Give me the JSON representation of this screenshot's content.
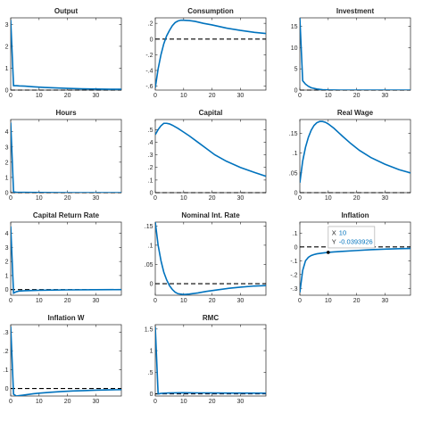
{
  "figure": {
    "line_color": "#0072BD",
    "zero_line_color": "#000000",
    "axis_color": "#262626"
  },
  "chart_data": [
    {
      "title": "Output",
      "type": "line",
      "xlim": [
        0,
        39
      ],
      "ylim": [
        0,
        3.3
      ],
      "xticks": [
        0,
        10,
        20,
        30
      ],
      "yticks": [
        0,
        1,
        2,
        3
      ],
      "zero_line": true,
      "x": [
        0,
        1,
        2,
        3,
        5,
        8,
        12,
        16,
        20,
        25,
        30,
        35,
        39
      ],
      "series": [
        {
          "values": [
            3.2,
            0.2,
            0.2,
            0.19,
            0.18,
            0.15,
            0.12,
            0.1,
            0.08,
            0.06,
            0.05,
            0.04,
            0.04
          ]
        }
      ]
    },
    {
      "title": "Consumption",
      "type": "line",
      "xlim": [
        0,
        39
      ],
      "ylim": [
        -0.65,
        0.27
      ],
      "xticks": [
        0,
        10,
        20,
        30
      ],
      "yticks": [
        -0.6,
        -0.4,
        -0.2,
        0,
        0.2
      ],
      "zero_line": true,
      "x": [
        0,
        1,
        2,
        3,
        4,
        5,
        6,
        7,
        8,
        9,
        10,
        12,
        14,
        17,
        20,
        25,
        30,
        35,
        39
      ],
      "series": [
        {
          "values": [
            -0.62,
            -0.38,
            -0.2,
            -0.06,
            0.04,
            0.11,
            0.17,
            0.21,
            0.23,
            0.24,
            0.24,
            0.235,
            0.225,
            0.2,
            0.18,
            0.14,
            0.11,
            0.085,
            0.07
          ]
        }
      ]
    },
    {
      "title": "Investment",
      "type": "line",
      "xlim": [
        0,
        39
      ],
      "ylim": [
        0,
        17
      ],
      "xticks": [
        0,
        10,
        20,
        30
      ],
      "yticks": [
        0,
        5,
        10,
        15
      ],
      "zero_line": true,
      "x": [
        0,
        1,
        2,
        3,
        4,
        6,
        8,
        10,
        14,
        20,
        30,
        39
      ],
      "series": [
        {
          "values": [
            17,
            2.2,
            1.4,
            0.9,
            0.55,
            0.25,
            0.1,
            0.04,
            0.0,
            0.0,
            0.0,
            0.0
          ]
        }
      ]
    },
    {
      "title": "Hours",
      "type": "line",
      "xlim": [
        0,
        39
      ],
      "ylim": [
        0,
        4.8
      ],
      "xticks": [
        0,
        10,
        20,
        30
      ],
      "yticks": [
        0,
        1,
        2,
        3,
        4
      ],
      "zero_line": true,
      "x": [
        0,
        1,
        2,
        5,
        10,
        20,
        30,
        39
      ],
      "series": [
        {
          "values": [
            4.6,
            0.05,
            0.03,
            0.02,
            0.01,
            0.0,
            0.0,
            0.0
          ]
        }
      ]
    },
    {
      "title": "Capital",
      "type": "line",
      "xlim": [
        0,
        39
      ],
      "ylim": [
        0,
        0.58
      ],
      "xticks": [
        0,
        10,
        20,
        30
      ],
      "yticks": [
        0,
        0.1,
        0.2,
        0.3,
        0.4,
        0.5
      ],
      "zero_line": true,
      "x": [
        0,
        1,
        2,
        3,
        4,
        5,
        6,
        8,
        10,
        12,
        15,
        18,
        21,
        25,
        30,
        35,
        39
      ],
      "series": [
        {
          "values": [
            0.46,
            0.5,
            0.53,
            0.55,
            0.55,
            0.545,
            0.535,
            0.51,
            0.48,
            0.45,
            0.4,
            0.35,
            0.3,
            0.25,
            0.2,
            0.16,
            0.13
          ]
        }
      ]
    },
    {
      "title": "Real Wage",
      "type": "line",
      "xlim": [
        0,
        39
      ],
      "ylim": [
        0,
        0.185
      ],
      "xticks": [
        0,
        10,
        20,
        30
      ],
      "yticks": [
        0,
        0.05,
        0.1,
        0.15
      ],
      "zero_line": true,
      "x": [
        0,
        1,
        2,
        3,
        4,
        5,
        6,
        7,
        8,
        9,
        10,
        12,
        15,
        18,
        21,
        25,
        30,
        35,
        39
      ],
      "series": [
        {
          "values": [
            0.025,
            0.08,
            0.115,
            0.14,
            0.158,
            0.17,
            0.177,
            0.18,
            0.18,
            0.178,
            0.174,
            0.163,
            0.143,
            0.124,
            0.107,
            0.089,
            0.072,
            0.058,
            0.05
          ]
        }
      ]
    },
    {
      "title": "Capital Return Rate",
      "type": "line",
      "xlim": [
        0,
        39
      ],
      "ylim": [
        -0.4,
        4.8
      ],
      "xticks": [
        0,
        10,
        20,
        30
      ],
      "yticks": [
        0,
        1,
        2,
        3,
        4
      ],
      "zero_line": true,
      "x": [
        0,
        1,
        2,
        3,
        5,
        10,
        15,
        20,
        30,
        39
      ],
      "series": [
        {
          "values": [
            4.5,
            -0.25,
            -0.15,
            -0.1,
            -0.08,
            -0.05,
            -0.03,
            -0.02,
            -0.01,
            0.0
          ]
        }
      ]
    },
    {
      "title": "Nominal Int. Rate",
      "type": "line",
      "xlim": [
        0,
        39
      ],
      "ylim": [
        -0.03,
        0.16
      ],
      "xticks": [
        0,
        10,
        20,
        30
      ],
      "yticks": [
        0,
        0.05,
        0.1,
        0.15
      ],
      "zero_line": true,
      "x": [
        0,
        1,
        2,
        3,
        4,
        5,
        6,
        7,
        8,
        10,
        12,
        15,
        18,
        22,
        26,
        30,
        35,
        39
      ],
      "series": [
        {
          "values": [
            0.16,
            0.1,
            0.06,
            0.03,
            0.01,
            -0.005,
            -0.015,
            -0.022,
            -0.026,
            -0.028,
            -0.027,
            -0.024,
            -0.02,
            -0.016,
            -0.012,
            -0.009,
            -0.006,
            -0.005
          ]
        }
      ]
    },
    {
      "title": "Inflation",
      "type": "line",
      "xlim": [
        0,
        39
      ],
      "ylim": [
        -0.35,
        0.18
      ],
      "xticks": [
        0,
        10,
        20,
        30
      ],
      "yticks": [
        -0.3,
        -0.2,
        -0.1,
        0,
        0.1
      ],
      "zero_line": true,
      "x": [
        0,
        1,
        2,
        3,
        4,
        5,
        6,
        8,
        10,
        12,
        15,
        20,
        25,
        30,
        35,
        39
      ],
      "series": [
        {
          "values": [
            -0.33,
            -0.17,
            -0.1,
            -0.075,
            -0.062,
            -0.055,
            -0.05,
            -0.044,
            -0.0393926,
            -0.036,
            -0.032,
            -0.026,
            -0.02,
            -0.016,
            -0.013,
            -0.011
          ]
        }
      ],
      "datatip": {
        "x_label": "X",
        "x_value": "10",
        "y_label": "Y",
        "y_value": "-0.0393926",
        "x": 10,
        "y": -0.0393926
      }
    },
    {
      "title": "Inflation W",
      "type": "line",
      "xlim": [
        0,
        39
      ],
      "ylim": [
        -0.04,
        0.34
      ],
      "xticks": [
        0,
        10,
        20,
        30
      ],
      "yticks": [
        0,
        0.1,
        0.2,
        0.3
      ],
      "zero_line": true,
      "x": [
        0,
        1,
        2,
        3,
        4,
        6,
        8,
        10,
        14,
        18,
        22,
        26,
        30,
        35,
        39
      ],
      "series": [
        {
          "values": [
            0.33,
            -0.03,
            -0.04,
            -0.038,
            -0.036,
            -0.032,
            -0.028,
            -0.025,
            -0.02,
            -0.016,
            -0.013,
            -0.011,
            -0.009,
            -0.007,
            -0.006
          ]
        }
      ]
    },
    {
      "title": "RMC",
      "type": "line",
      "xlim": [
        0,
        39
      ],
      "ylim": [
        -0.05,
        1.6
      ],
      "xticks": [
        0,
        10,
        20,
        30
      ],
      "yticks": [
        0,
        0.5,
        1,
        1.5
      ],
      "zero_line": true,
      "x": [
        0,
        1,
        2,
        3,
        5,
        10,
        15,
        20,
        30,
        39
      ],
      "series": [
        {
          "values": [
            1.55,
            0.0,
            0.01,
            0.015,
            0.02,
            0.025,
            0.022,
            0.02,
            0.018,
            0.015
          ]
        }
      ]
    }
  ]
}
